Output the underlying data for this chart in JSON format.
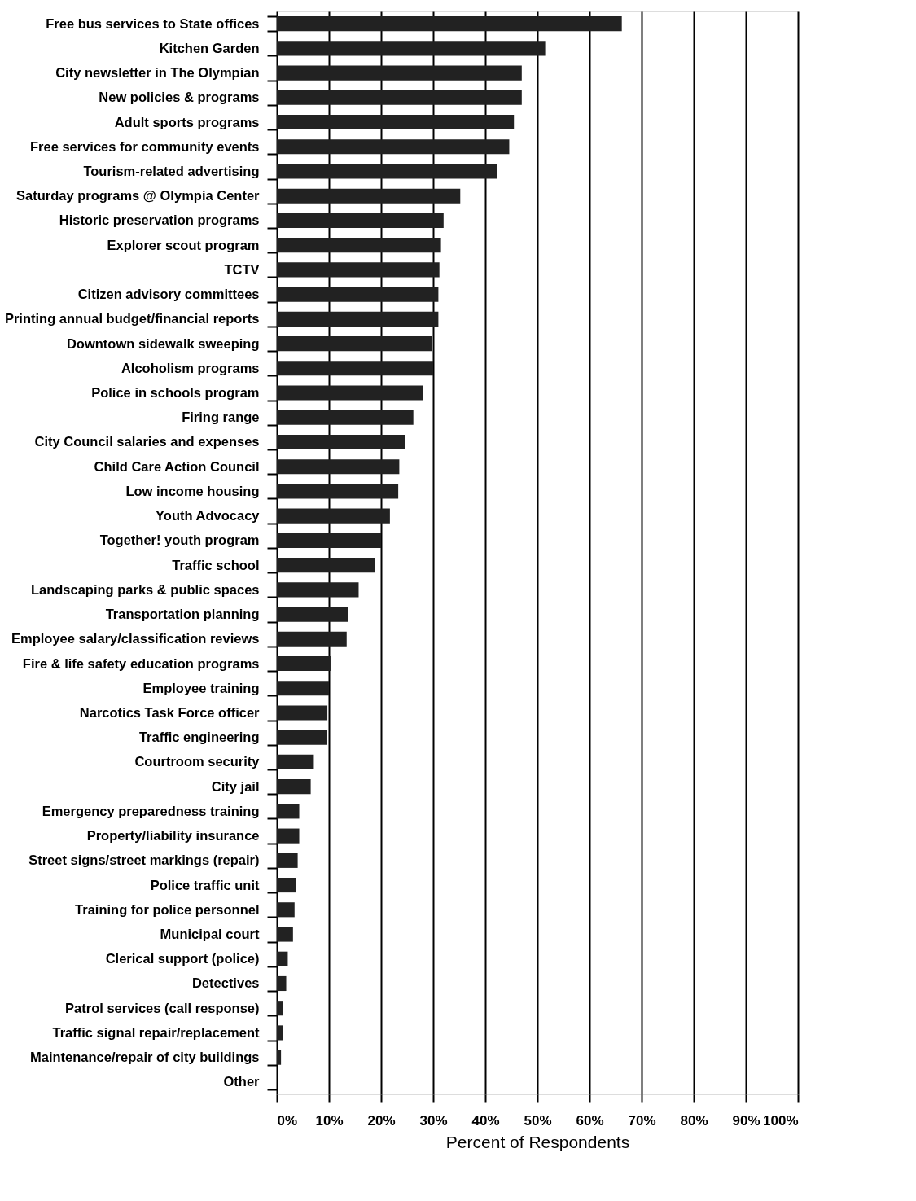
{
  "chart_data": {
    "type": "bar",
    "orientation": "horizontal",
    "xlabel": "Percent of Respondents",
    "categories": [
      "Free bus services to State offices",
      "Kitchen Garden",
      "City newsletter in The Olympian",
      "New policies & programs",
      "Adult sports programs",
      "Free services for community events",
      "Tourism-related advertising",
      "Saturday programs @ Olympia Center",
      "Historic preservation programs",
      "Explorer scout program",
      "TCTV",
      "Citizen advisory committees",
      "Printing annual budget/financial reports",
      "Downtown sidewalk sweeping",
      "Alcoholism programs",
      "Police in schools program",
      "Firing range",
      "City Council salaries and expenses",
      "Child Care Action Council",
      "Low income housing",
      "Youth Advocacy",
      "Together! youth program",
      "Traffic school",
      "Landscaping parks & public spaces",
      "Transportation planning",
      "Employee salary/classification reviews",
      "Fire & life safety education programs",
      "Employee training",
      "Narcotics Task Force officer",
      "Traffic engineering",
      "Courtroom security",
      "City jail",
      "Emergency preparedness training",
      "Property/liability insurance",
      "Street signs/street markings (repair)",
      "Police traffic unit",
      "Training for police personnel",
      "Municipal court",
      "Clerical support (police)",
      "Detectives",
      "Patrol services (call response)",
      "Traffic signal repair/replacement",
      "Maintenance/repair of city buildings",
      "Other"
    ],
    "values": [
      66.2,
      51.5,
      47,
      47,
      45.5,
      44.6,
      42.2,
      35.2,
      32,
      31.5,
      31.2,
      31,
      31,
      29.8,
      30,
      28,
      26.2,
      24.6,
      23.5,
      23.3,
      21.7,
      20,
      18.8,
      15.7,
      13.7,
      13.4,
      10.3,
      10,
      9.7,
      9.6,
      7.1,
      6.5,
      4.3,
      4.3,
      4,
      3.7,
      3.4,
      3.1,
      2.1,
      1.8,
      1.2,
      1.2,
      0.8,
      0
    ],
    "color": "#222222",
    "xlim": [
      0,
      100
    ],
    "xticks": [
      {
        "value": 0,
        "label": "0%"
      },
      {
        "value": 10,
        "label": "10%"
      },
      {
        "value": 20,
        "label": "20%"
      },
      {
        "value": 30,
        "label": "30%"
      },
      {
        "value": 40,
        "label": "40%"
      },
      {
        "value": 50,
        "label": "50%"
      },
      {
        "value": 60,
        "label": "60%"
      },
      {
        "value": 70,
        "label": "70%"
      },
      {
        "value": 80,
        "label": "80%"
      },
      {
        "value": 90,
        "label": "90%"
      },
      {
        "value": 100,
        "label": "100%"
      }
    ],
    "grid": "x"
  }
}
